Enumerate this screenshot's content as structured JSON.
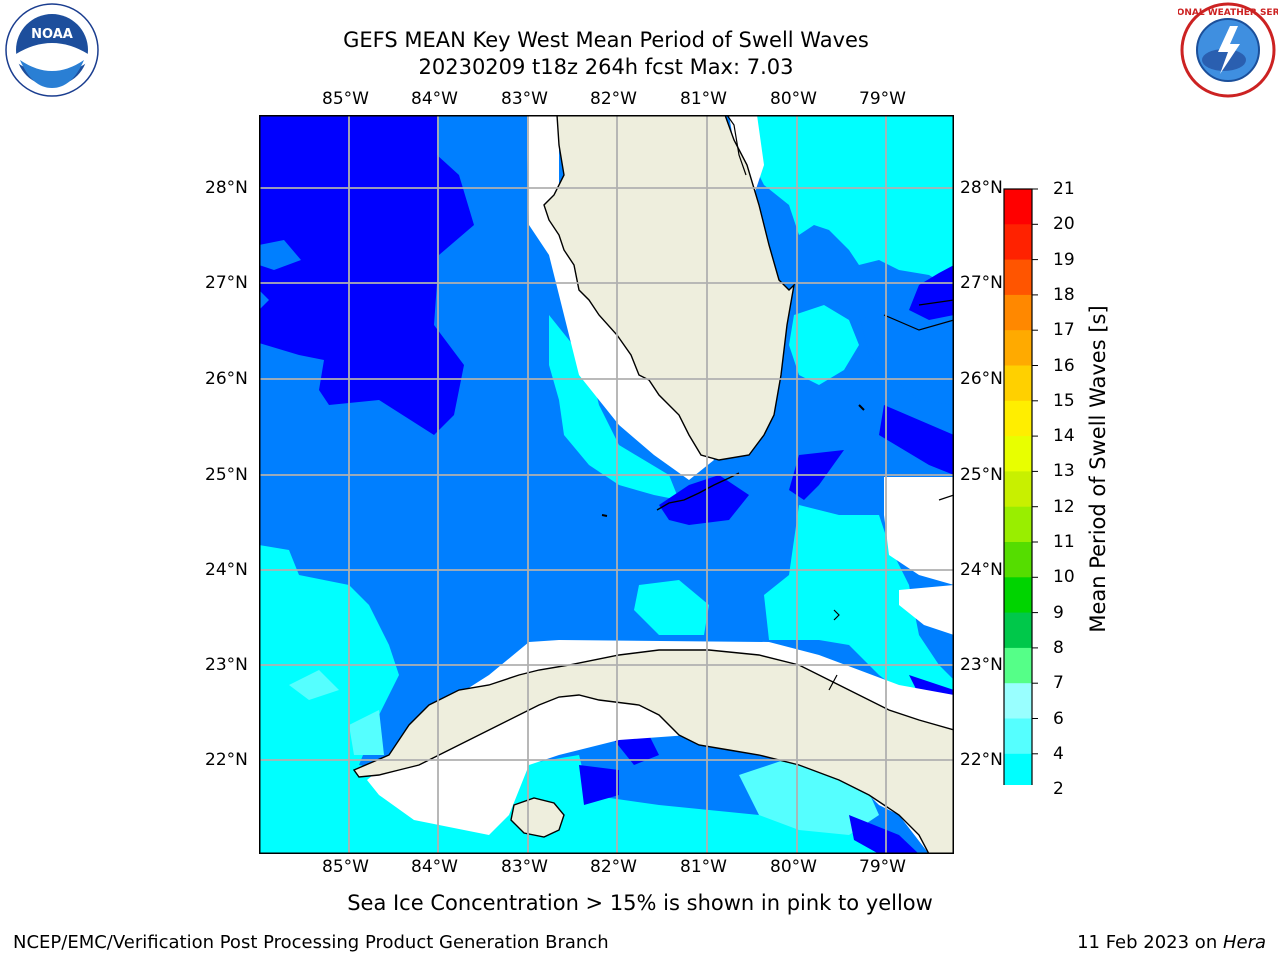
{
  "title": {
    "line1": "GEFS MEAN Key West Mean Period of Swell Waves",
    "line2": "20230209 t18z 264h fcst   Max: 7.03"
  },
  "map": {
    "lon_ticks": [
      "85°W",
      "84°W",
      "83°W",
      "82°W",
      "81°W",
      "80°W",
      "79°W"
    ],
    "lat_ticks": [
      "28°N",
      "27°N",
      "26°N",
      "25°N",
      "24°N",
      "23°N",
      "22°N"
    ],
    "land_color": "#EEEEDD",
    "missing_color": "#FFFFFF",
    "grid_color": "#B0B0B0"
  },
  "colorbar": {
    "title": "Mean Period of Swell Waves [s]",
    "ticks": [
      "21",
      "20",
      "19",
      "18",
      "17",
      "16",
      "15",
      "14",
      "13",
      "12",
      "11",
      "10",
      "9",
      "8",
      "7",
      "6",
      "4",
      "2"
    ],
    "colors": [
      "#FF0000",
      "#FF2200",
      "#FF5500",
      "#FF8800",
      "#FFAA00",
      "#FFD000",
      "#FFEE00",
      "#E8FF00",
      "#C8F000",
      "#99EE00",
      "#55DD00",
      "#00D400",
      "#00C84A",
      "#55FF88",
      "#99FFFF",
      "#55FFFF",
      "#00FFFF",
      "#007FFF",
      "#0000FF"
    ]
  },
  "note": "Sea Ice Concentration > 15% is shown in pink to yellow",
  "footer": {
    "left": "NCEP/EMC/Verification Post Processing Product Generation Branch",
    "right_date": "11 Feb 2023 on ",
    "right_host": "Hera"
  },
  "logos": {
    "noaa_text": "NOAA",
    "nws_text": "NATIONAL WEATHER SERVICE"
  }
}
